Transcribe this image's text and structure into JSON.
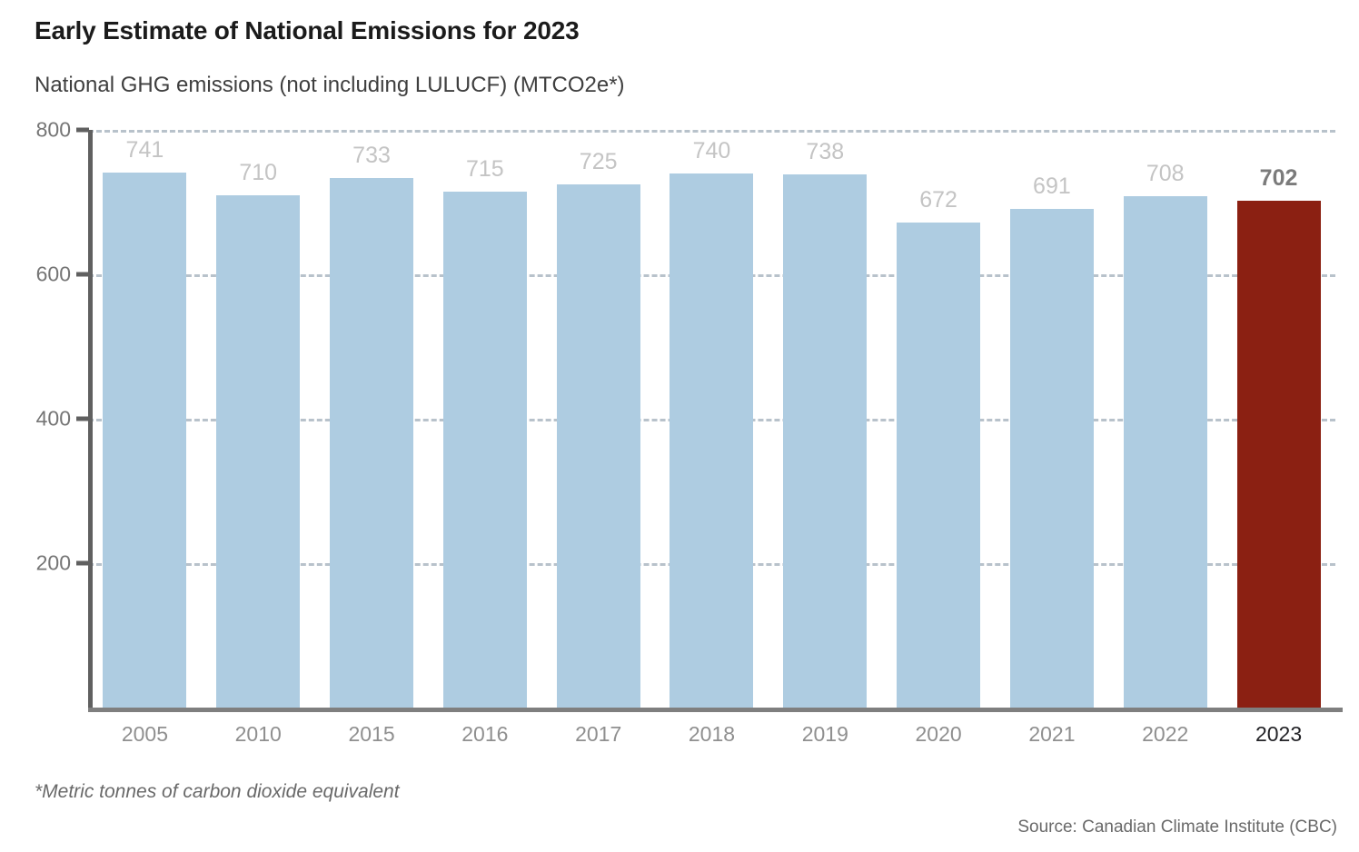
{
  "header": {
    "title": "Early Estimate of National Emissions for 2023",
    "subtitle": "National GHG emissions (not including LULUCF) (MTCO2e*)"
  },
  "chart_data": {
    "type": "bar",
    "title": "Early Estimate of National Emissions for 2023",
    "subtitle": "National GHG emissions (not including LULUCF) (MTCO2e*)",
    "categories": [
      "2005",
      "2010",
      "2015",
      "2016",
      "2017",
      "2018",
      "2019",
      "2020",
      "2021",
      "2022",
      "2023"
    ],
    "values": [
      741,
      710,
      733,
      715,
      725,
      740,
      738,
      672,
      691,
      708,
      702
    ],
    "highlight_index": 10,
    "highlight_category": "2023",
    "highlight_value": 702,
    "ylim": [
      0,
      800
    ],
    "y_ticks": [
      800,
      600,
      400,
      200
    ],
    "xlabel": "",
    "ylabel": "National GHG emissions (not including LULUCF) (MTCO2e*)",
    "grid": "horizontal-dashed",
    "legend": "none",
    "colors": {
      "bar": "#aecce1",
      "highlight_bar": "#8b2012",
      "value_label": "#c4c4c4",
      "highlight_value_label": "#7b7b7b",
      "axis_label": "#8f8f8f",
      "highlight_axis_label": "#232327",
      "gridline": "#b8c2cb",
      "axis_line": "#606060"
    }
  },
  "footer": {
    "footnote": "*Metric tonnes of carbon dioxide equivalent",
    "source": "Source: Canadian Climate Institute (CBC)"
  }
}
